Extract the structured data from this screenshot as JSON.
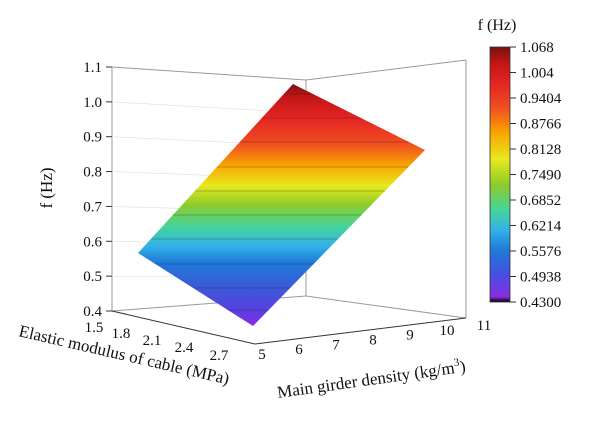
{
  "chart_data": {
    "type": "surface3d",
    "zlabel": "f (Hz)",
    "xlabel": "Elastic modulus of cable (MPa)",
    "ylabel": "Main girder density (kg/m³)",
    "colorbar_title": "f (Hz)",
    "x_ticks": [
      "1.5",
      "1.8",
      "2.1",
      "2.4",
      "2.7"
    ],
    "y_ticks": [
      "5",
      "6",
      "7",
      "8",
      "9",
      "10",
      "11"
    ],
    "z_ticks": [
      "0.4",
      "0.5",
      "0.6",
      "0.7",
      "0.8",
      "0.9",
      "1.0",
      "1.1"
    ],
    "zlim": [
      0.4,
      1.1
    ],
    "colorbar_ticks": [
      "1.068",
      "1.004",
      "0.9404",
      "0.8766",
      "0.8128",
      "0.7490",
      "0.6852",
      "0.6214",
      "0.5576",
      "0.4938",
      "0.4300"
    ],
    "colorbar_range": [
      0.43,
      1.068
    ],
    "colorbar_colors": [
      "#000000",
      "#8a2be2",
      "#4a4de0",
      "#1f78d8",
      "#32b0e8",
      "#44d49c",
      "#8ccc2a",
      "#e8e81e",
      "#f8a800",
      "#f05020",
      "#e42323",
      "#c01616",
      "#7a1010"
    ],
    "surface": {
      "corners": [
        {
          "elastic_modulus": 1.5,
          "density": 5,
          "f": 0.576
        },
        {
          "elastic_modulus": 2.7,
          "density": 5,
          "f": 0.43
        },
        {
          "elastic_modulus": 2.7,
          "density": 11,
          "f": 0.887
        },
        {
          "elastic_modulus": 1.5,
          "density": 11,
          "f": 1.068
        }
      ]
    },
    "grid": true
  }
}
